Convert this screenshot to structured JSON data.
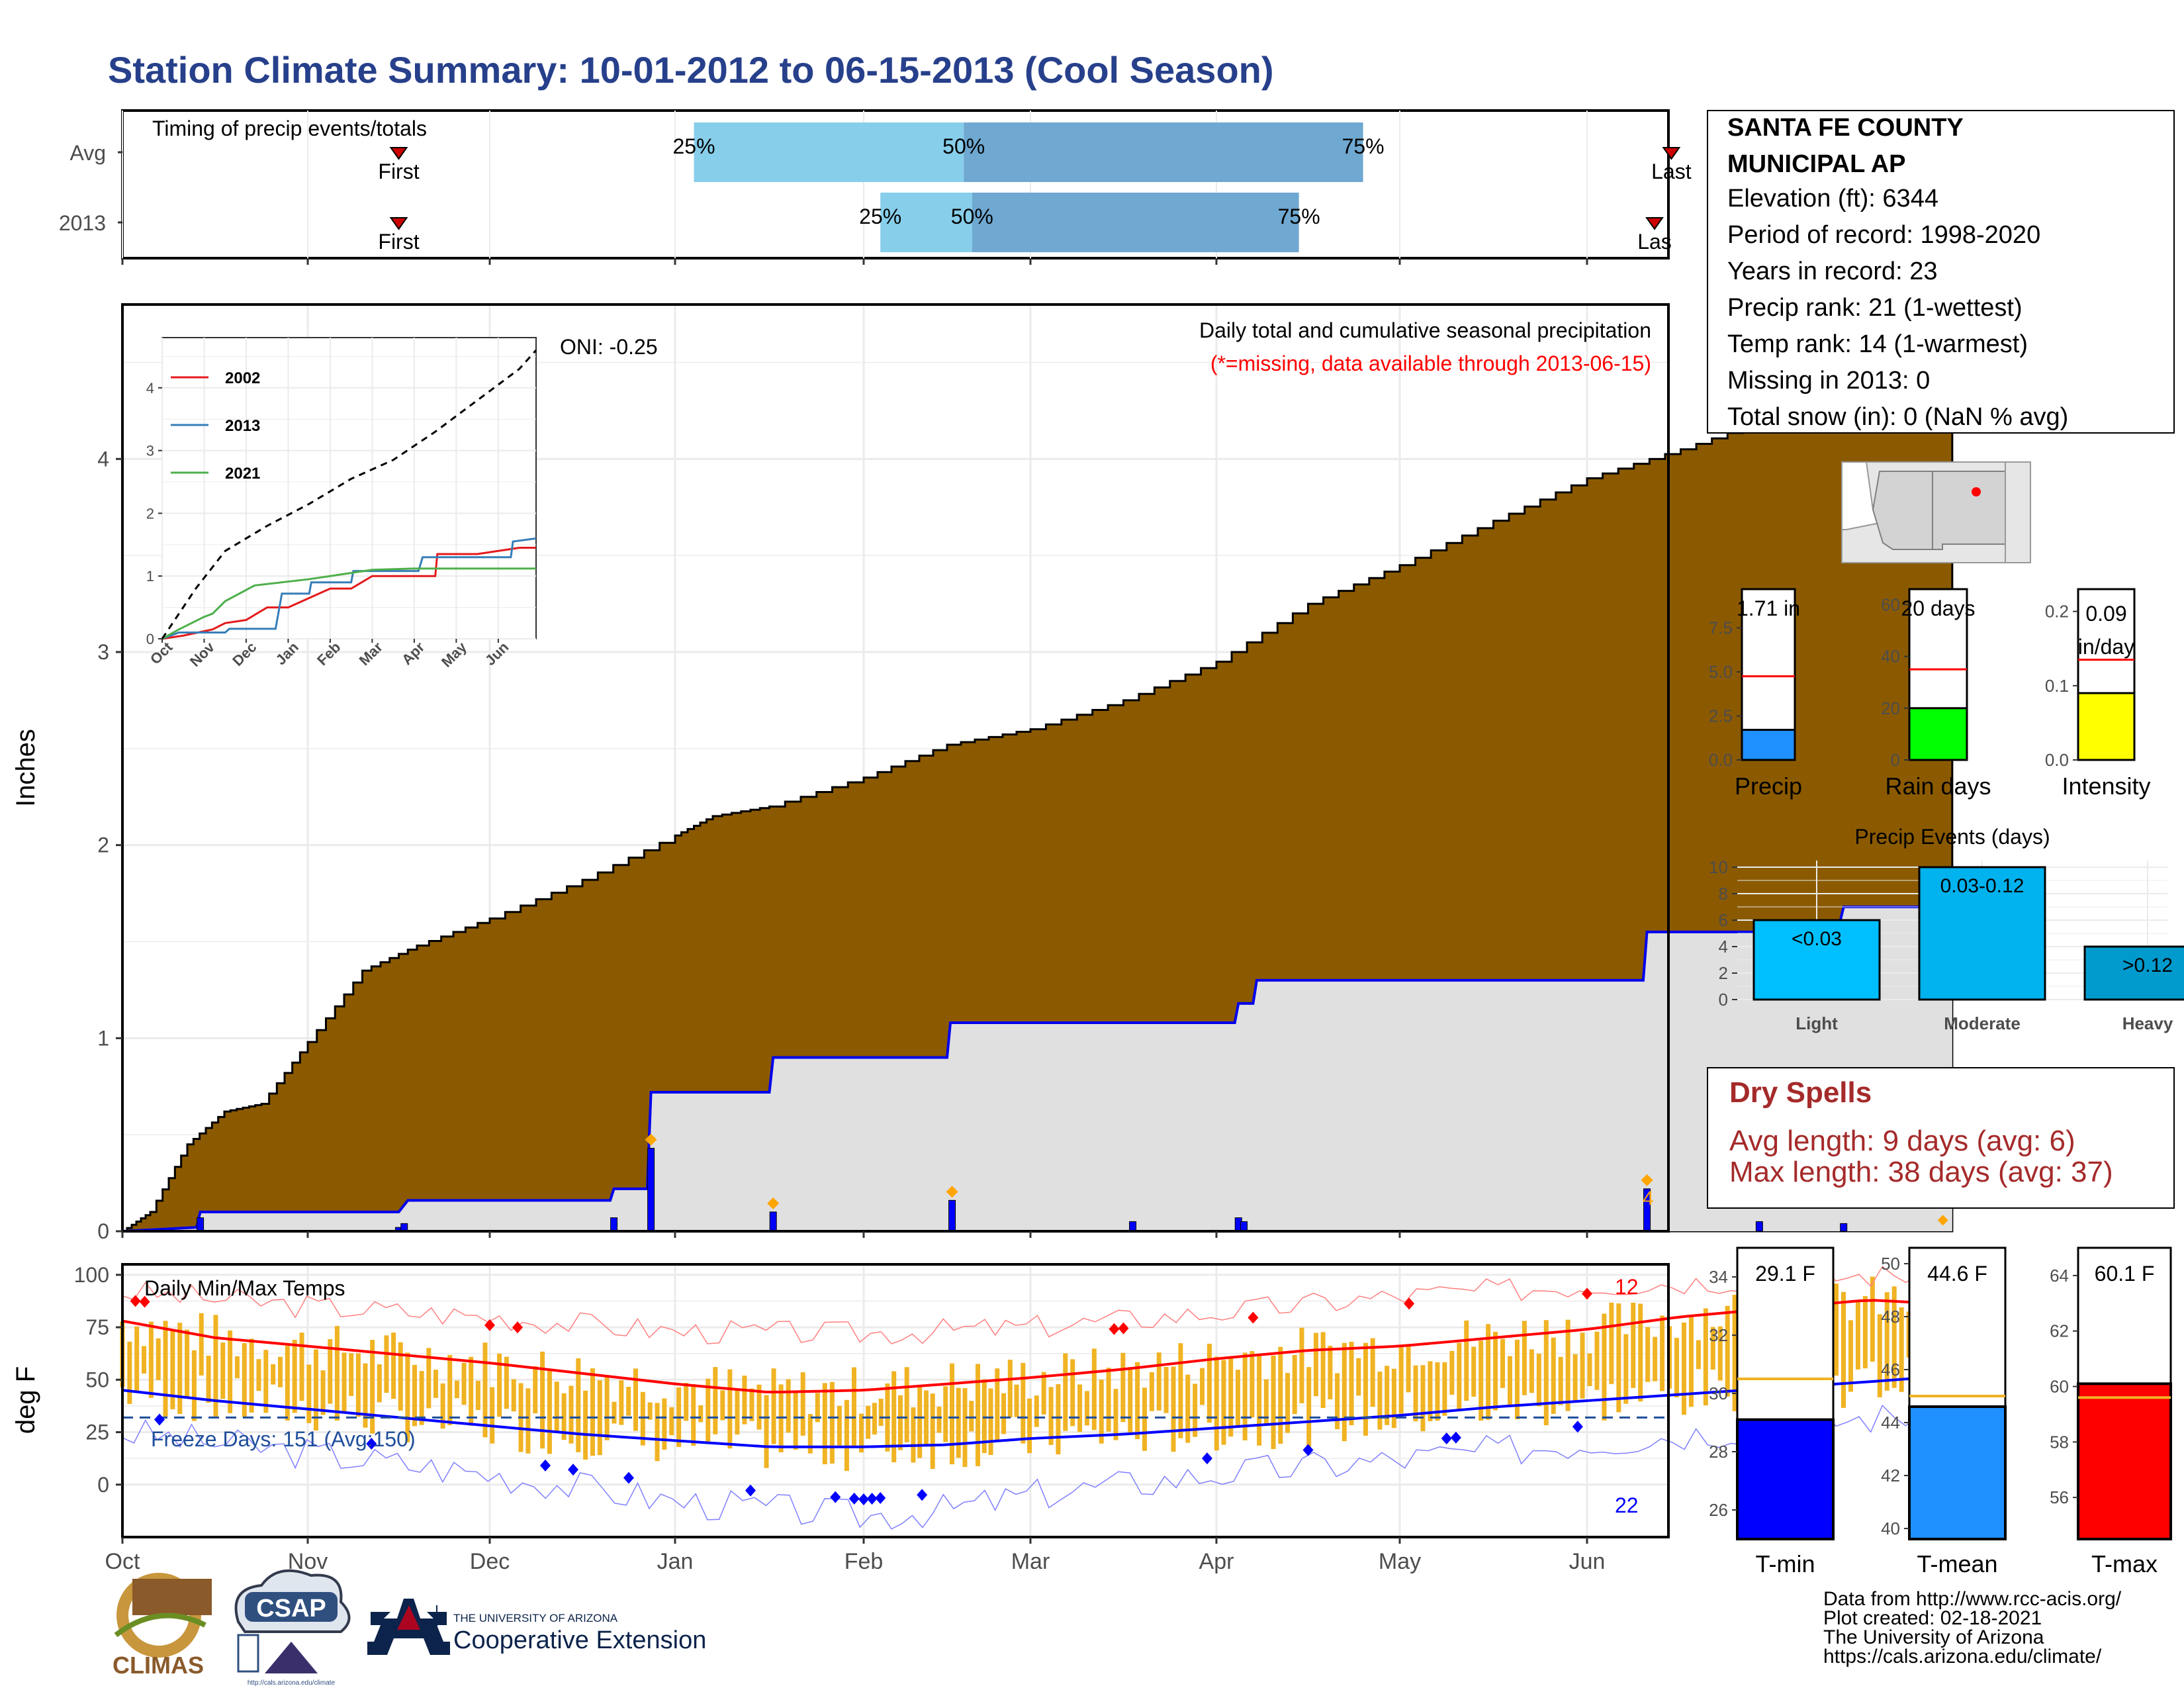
{
  "title": "Station Climate Summary: 10-01-2012 to 06-15-2013 (Cool Season)",
  "station": {
    "name_line1": "SANTA FE COUNTY",
    "name_line2": "MUNICIPAL AP",
    "lines": [
      "Elevation (ft): 6344",
      "Period of record: 1998-2020",
      "Years in record: 23",
      "Precip rank: 21 (1-wettest)",
      "Temp rank: 14 (1-warmest)",
      "Missing in 2013: 0",
      "Total snow (in): 0 (NaN % avg)"
    ]
  },
  "timing": {
    "label": "Timing of precip events/totals",
    "rows": [
      "Avg",
      "2013"
    ],
    "first_label": "First",
    "last_label": "Last",
    "last_clipped": "Las",
    "pct": [
      "25%",
      "50%",
      "75%"
    ]
  },
  "precip_panel": {
    "ylabel": "Inches",
    "yticks": [
      "0",
      "1",
      "2",
      "3",
      "4"
    ],
    "heading": "Daily total and cumulative seasonal precipitation",
    "missing_note": "(*=missing, data available through 2013-06-15)",
    "oni": "ONI: -0.25",
    "corner_count": "4"
  },
  "inset": {
    "yticks": [
      "0",
      "1",
      "2",
      "3",
      "4"
    ],
    "xticks": [
      "Oct",
      "Nov",
      "Dec",
      "Jan",
      "Feb",
      "Mar",
      "Apr",
      "May",
      "Jun"
    ],
    "legend": [
      {
        "name": "2002",
        "color": "#e41a1c"
      },
      {
        "name": "2013",
        "color": "#377eb8"
      },
      {
        "name": "2021",
        "color": "#4daf4a"
      }
    ]
  },
  "temp_panel": {
    "ylabel": "deg F",
    "yticks": [
      "0",
      "25",
      "50",
      "75",
      "100"
    ],
    "label": "Daily Min/Max Temps",
    "freeze": "Freeze Days: 151 (Avg:150)",
    "hot_count": "12",
    "cold_count": "22"
  },
  "months": [
    "Oct",
    "Nov",
    "Dec",
    "Jan",
    "Feb",
    "Mar",
    "Apr",
    "May",
    "Jun"
  ],
  "mini_precip": [
    {
      "label": "Precip",
      "value_text": "1.71 in",
      "ticks": [
        "0.0",
        "2.5",
        "5.0",
        "7.5"
      ],
      "color": "#1e90ff"
    },
    {
      "label": "Rain days",
      "value_text": "20 days",
      "ticks": [
        "0",
        "20",
        "40",
        "60"
      ],
      "color": "#00ff00"
    },
    {
      "label": "Intensity",
      "value_text": "0.09 in/day",
      "value_line1": "0.09",
      "value_line2": "in/day",
      "ticks": [
        "0.0",
        "0.1",
        "0.2"
      ],
      "color": "#ffff00"
    }
  ],
  "events": {
    "title": "Precip Events (days)",
    "ticks": [
      "0",
      "2",
      "4",
      "6",
      "8",
      "10"
    ],
    "bars": [
      {
        "cat": "Light",
        "label": "<0.03",
        "value": 6,
        "color": "#00bfff"
      },
      {
        "cat": "Moderate",
        "label": "0.03-0.12",
        "value": 10,
        "color": "#00b2ee"
      },
      {
        "cat": "Heavy",
        "label": ">0.12",
        "value": 4,
        "color": "#009acd"
      }
    ]
  },
  "dry": {
    "title": "Dry Spells",
    "avg": "Avg length: 9 days (avg: 6)",
    "max": "Max length: 38 days (avg: 37)"
  },
  "mini_temp": [
    {
      "label": "T-min",
      "value_text": "29.1 F",
      "ticks": [
        "26",
        "28",
        "30",
        "32",
        "34"
      ],
      "color": "#0000ff"
    },
    {
      "label": "T-mean",
      "value_text": "44.6 F",
      "ticks": [
        "40",
        "42",
        "44",
        "46",
        "48",
        "50"
      ],
      "color": "#1e90ff"
    },
    {
      "label": "T-max",
      "value_text": "60.1 F",
      "ticks": [
        "56",
        "58",
        "60",
        "62",
        "64"
      ],
      "color": "#ff0000"
    }
  ],
  "credits": [
    "Data from http://www.rcc-acis.org/",
    "Plot created: 02-18-2021",
    "The University of Arizona",
    "https://cals.arizona.edu/climate/"
  ],
  "logos": {
    "climas": "CLIMAS",
    "csap": "CSAP",
    "csap_url": "http://cals.arizona.edu/climate",
    "ua_line1": "THE UNIVERSITY OF ARIZONA",
    "ua_line2": "Cooperative Extension"
  },
  "chart_data": [
    {
      "type": "bar",
      "name": "timing",
      "rows": [
        "Avg",
        "2013"
      ],
      "first_month": [
        1.5,
        1.5
      ],
      "last_month": [
        8.45,
        8.7
      ],
      "q25_month": [
        3.1,
        4.1
      ],
      "q50_month": [
        4.6,
        4.65
      ],
      "q75_month": [
        6.8,
        6.45
      ]
    },
    {
      "type": "area",
      "name": "cumulative precipitation",
      "xlabel": "",
      "ylabel": "Inches",
      "ylim": [
        0,
        4.8
      ],
      "avg_cum": [
        [
          0,
          0
        ],
        [
          0.15,
          0.1
        ],
        [
          0.35,
          0.45
        ],
        [
          0.55,
          0.62
        ],
        [
          0.75,
          0.66
        ],
        [
          1.0,
          0.98
        ],
        [
          1.3,
          1.35
        ],
        [
          1.6,
          1.48
        ],
        [
          2.0,
          1.62
        ],
        [
          2.5,
          1.82
        ],
        [
          3.0,
          2.05
        ],
        [
          3.2,
          2.15
        ],
        [
          3.5,
          2.2
        ],
        [
          4.0,
          2.35
        ],
        [
          4.5,
          2.52
        ],
        [
          5.0,
          2.6
        ],
        [
          5.5,
          2.75
        ],
        [
          6.0,
          2.95
        ],
        [
          6.5,
          3.25
        ],
        [
          7.0,
          3.45
        ],
        [
          7.5,
          3.68
        ],
        [
          8.0,
          3.9
        ],
        [
          8.5,
          4.05
        ],
        [
          9.0,
          4.22
        ],
        [
          9.5,
          4.35
        ],
        [
          9.95,
          4.4
        ]
      ],
      "year_cum": [
        [
          0,
          0
        ],
        [
          0.4,
          0.02
        ],
        [
          0.42,
          0.1
        ],
        [
          1.5,
          0.1
        ],
        [
          1.55,
          0.16
        ],
        [
          2.65,
          0.16
        ],
        [
          2.67,
          0.22
        ],
        [
          2.85,
          0.22
        ],
        [
          2.87,
          0.72
        ],
        [
          3.5,
          0.72
        ],
        [
          3.52,
          0.9
        ],
        [
          4.5,
          0.9
        ],
        [
          4.52,
          1.08
        ],
        [
          6.1,
          1.08
        ],
        [
          6.12,
          1.18
        ],
        [
          6.2,
          1.18
        ],
        [
          6.22,
          1.3
        ],
        [
          8.3,
          1.3
        ],
        [
          8.32,
          1.55
        ],
        [
          8.9,
          1.55
        ],
        [
          8.92,
          1.6
        ],
        [
          9.35,
          1.6
        ],
        [
          9.37,
          1.68
        ],
        [
          9.9,
          1.68
        ],
        [
          9.92,
          1.72
        ],
        [
          9.95,
          1.72
        ]
      ],
      "daily": [
        [
          0.42,
          0.07
        ],
        [
          1.5,
          0.02
        ],
        [
          1.53,
          0.04
        ],
        [
          2.67,
          0.07
        ],
        [
          2.87,
          0.43
        ],
        [
          3.52,
          0.1
        ],
        [
          4.53,
          0.16
        ],
        [
          5.55,
          0.05
        ],
        [
          6.12,
          0.07
        ],
        [
          6.15,
          0.05
        ],
        [
          8.32,
          0.22
        ],
        [
          8.92,
          0.05
        ],
        [
          9.37,
          0.04
        ]
      ]
    },
    {
      "type": "line",
      "name": "inset cumulative precip",
      "ylim": [
        0,
        4.8
      ],
      "series": [
        {
          "name": "2002",
          "points": [
            [
              0,
              0
            ],
            [
              0.5,
              0.05
            ],
            [
              1.2,
              0.15
            ],
            [
              1.5,
              0.25
            ],
            [
              2.0,
              0.3
            ],
            [
              2.5,
              0.5
            ],
            [
              3.0,
              0.5
            ],
            [
              3.5,
              0.65
            ],
            [
              4.0,
              0.8
            ],
            [
              4.5,
              0.8
            ],
            [
              5.0,
              1.0
            ],
            [
              6.5,
              1.0
            ],
            [
              6.55,
              1.35
            ],
            [
              7.5,
              1.35
            ],
            [
              8.0,
              1.4
            ],
            [
              8.5,
              1.45
            ],
            [
              8.9,
              1.45
            ]
          ]
        },
        {
          "name": "2013",
          "points": [
            [
              0,
              0
            ],
            [
              0.4,
              0.1
            ],
            [
              1.5,
              0.1
            ],
            [
              1.6,
              0.16
            ],
            [
              2.7,
              0.16
            ],
            [
              2.85,
              0.72
            ],
            [
              3.5,
              0.72
            ],
            [
              3.55,
              0.9
            ],
            [
              4.5,
              0.9
            ],
            [
              4.55,
              1.08
            ],
            [
              6.1,
              1.08
            ],
            [
              6.2,
              1.3
            ],
            [
              8.3,
              1.3
            ],
            [
              8.35,
              1.55
            ],
            [
              8.9,
              1.6
            ]
          ]
        },
        {
          "name": "2021",
          "points": [
            [
              0,
              0
            ],
            [
              0.4,
              0.15
            ],
            [
              1.0,
              0.35
            ],
            [
              1.2,
              0.4
            ],
            [
              1.5,
              0.6
            ],
            [
              2.2,
              0.85
            ],
            [
              3.5,
              0.95
            ],
            [
              5.0,
              1.1
            ],
            [
              6.0,
              1.12
            ],
            [
              8.9,
              1.12
            ]
          ]
        },
        {
          "name": "avg",
          "points": [
            [
              0,
              0
            ],
            [
              0.3,
              0.3
            ],
            [
              0.8,
              0.8
            ],
            [
              1.5,
              1.4
            ],
            [
              2.5,
              1.8
            ],
            [
              3.5,
              2.15
            ],
            [
              4.5,
              2.55
            ],
            [
              5.5,
              2.85
            ],
            [
              6.5,
              3.3
            ],
            [
              7.5,
              3.8
            ],
            [
              8.5,
              4.3
            ],
            [
              8.9,
              4.6
            ]
          ]
        }
      ]
    },
    {
      "type": "line",
      "name": "daily temperatures",
      "ylabel": "deg F",
      "ylim": [
        -25,
        105
      ],
      "avg_max": [
        [
          0,
          78
        ],
        [
          0.5,
          70
        ],
        [
          1,
          66
        ],
        [
          1.5,
          62
        ],
        [
          2,
          58
        ],
        [
          2.5,
          53
        ],
        [
          3,
          48
        ],
        [
          3.5,
          44
        ],
        [
          4,
          45
        ],
        [
          4.5,
          48
        ],
        [
          5,
          51
        ],
        [
          5.5,
          55
        ],
        [
          6,
          60
        ],
        [
          6.5,
          64
        ],
        [
          7,
          66
        ],
        [
          7.5,
          70
        ],
        [
          8,
          74
        ],
        [
          8.5,
          80
        ],
        [
          9,
          84
        ],
        [
          9.5,
          88
        ],
        [
          9.95,
          86
        ]
      ],
      "avg_min": [
        [
          0,
          45
        ],
        [
          0.5,
          40
        ],
        [
          1,
          36
        ],
        [
          1.5,
          32
        ],
        [
          2,
          28
        ],
        [
          2.5,
          24
        ],
        [
          3,
          21
        ],
        [
          3.5,
          18
        ],
        [
          4,
          18
        ],
        [
          4.5,
          19
        ],
        [
          5,
          22
        ],
        [
          5.5,
          24
        ],
        [
          6,
          27
        ],
        [
          6.5,
          30
        ],
        [
          7,
          33
        ],
        [
          7.5,
          37
        ],
        [
          8,
          40
        ],
        [
          8.5,
          43
        ],
        [
          9,
          46
        ],
        [
          9.5,
          49
        ],
        [
          9.95,
          52
        ]
      ],
      "record_high": [
        [
          0,
          92
        ],
        [
          1,
          85
        ],
        [
          2,
          80
        ],
        [
          3,
          73
        ],
        [
          4,
          72
        ],
        [
          5,
          75
        ],
        [
          6,
          82
        ],
        [
          7,
          90
        ],
        [
          8,
          95
        ],
        [
          9,
          98
        ],
        [
          9.95,
          101
        ]
      ],
      "record_low": [
        [
          0,
          25
        ],
        [
          1,
          15
        ],
        [
          2,
          5
        ],
        [
          3,
          -8
        ],
        [
          4,
          -15
        ],
        [
          4.5,
          -12
        ],
        [
          5,
          -5
        ],
        [
          6,
          5
        ],
        [
          7,
          12
        ],
        [
          8,
          20
        ],
        [
          9,
          28
        ],
        [
          9.95,
          35
        ]
      ],
      "freeze_line": 32
    },
    {
      "type": "bar",
      "name": "season precip summary",
      "categories": [
        "Precip",
        "Rain days",
        "Intensity"
      ],
      "values": [
        1.71,
        20,
        0.09
      ],
      "averages": [
        4.75,
        35,
        0.135
      ],
      "ylims": [
        [
          0,
          9.7
        ],
        [
          0,
          66
        ],
        [
          0,
          0.23
        ]
      ]
    },
    {
      "type": "bar",
      "name": "precip events",
      "categories": [
        "Light",
        "Moderate",
        "Heavy"
      ],
      "values": [
        6,
        10,
        4
      ],
      "ylim": [
        0,
        10.5
      ]
    },
    {
      "type": "bar",
      "name": "season temperature summary",
      "categories": [
        "T-min",
        "T-mean",
        "T-max"
      ],
      "values": [
        29.1,
        44.6,
        60.1
      ],
      "averages": [
        30.5,
        45.0,
        59.6
      ],
      "ylims": [
        [
          25,
          35
        ],
        [
          39.6,
          50.6
        ],
        [
          54.5,
          65
        ]
      ]
    }
  ]
}
